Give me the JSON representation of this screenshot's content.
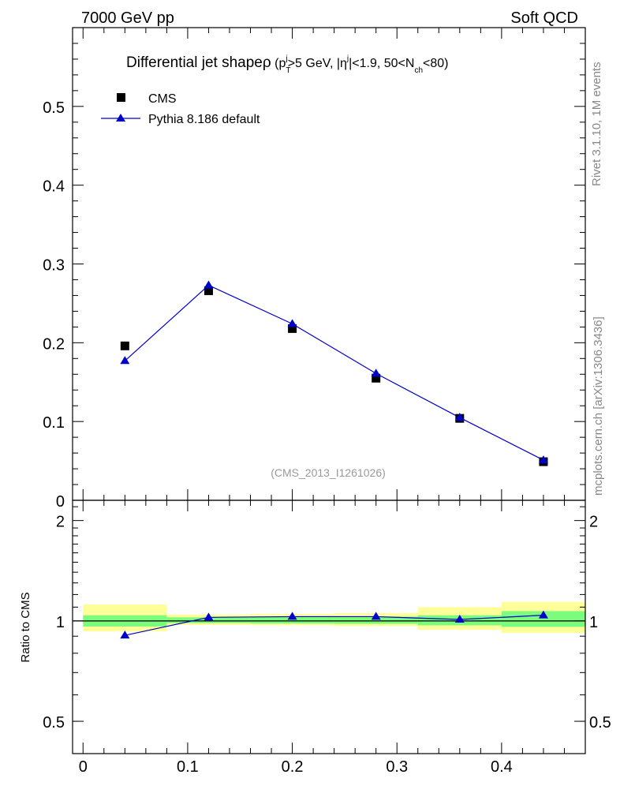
{
  "header": {
    "left": "7000 GeV pp",
    "right": "Soft QCD"
  },
  "side_labels": {
    "rivet": "Rivet 3.1.10,  1M events",
    "mcplots": "mcplots.cern.ch [arXiv:1306.3436]"
  },
  "title": {
    "main": "Differential jet shape",
    "rho": "ρ",
    "cut_open": " (p",
    "cut_pt_sub": "T",
    "cut_pt_sup": "j",
    "cut_mid": ">5 GeV, |η",
    "cut_eta_sup": "j",
    "cut_mid2": "|<1.9, 50<N",
    "cut_nch_sub": "ch",
    "cut_close": "<80)"
  },
  "watermark": "(CMS_2013_I1261026)",
  "ratio_ylabel": "Ratio to CMS",
  "colors": {
    "data": "#000000",
    "mc": "#0000cc",
    "band_inner": "#7cfc7c",
    "band_outer": "#ffff99"
  },
  "chart_data": [
    {
      "type": "scatter",
      "panel": "main",
      "xlim": [
        -0.01,
        0.48
      ],
      "ylim": [
        0,
        0.6
      ],
      "yticks": [
        {
          "value": 0,
          "label": "0"
        },
        {
          "value": 0.1,
          "label": "0.1"
        },
        {
          "value": 0.2,
          "label": "0.2"
        },
        {
          "value": 0.3,
          "label": "0.3"
        },
        {
          "value": 0.4,
          "label": "0.4"
        },
        {
          "value": 0.5,
          "label": "0.5"
        }
      ],
      "legend_position": "top-left",
      "series": [
        {
          "name": "CMS",
          "marker": "square",
          "x": [
            0.04,
            0.12,
            0.2,
            0.28,
            0.36,
            0.44
          ],
          "y": [
            0.196,
            0.266,
            0.218,
            0.155,
            0.104,
            0.049
          ]
        },
        {
          "name": "Pythia 8.186 default",
          "marker": "triangle",
          "x": [
            0.04,
            0.12,
            0.2,
            0.28,
            0.36,
            0.44
          ],
          "y": [
            0.177,
            0.273,
            0.224,
            0.161,
            0.105,
            0.051
          ]
        }
      ]
    },
    {
      "type": "line",
      "panel": "ratio",
      "xlim": [
        -0.01,
        0.48
      ],
      "ylim": [
        0.4,
        2.3
      ],
      "log_y": true,
      "xticks": [
        {
          "value": 0,
          "label": "0"
        },
        {
          "value": 0.1,
          "label": "0.1"
        },
        {
          "value": 0.2,
          "label": "0.2"
        },
        {
          "value": 0.3,
          "label": "0.3"
        },
        {
          "value": 0.4,
          "label": "0.4"
        }
      ],
      "yticks": [
        {
          "value": 0.5,
          "label": "0.5"
        },
        {
          "value": 1,
          "label": "1"
        },
        {
          "value": 2,
          "label": "2"
        }
      ],
      "bands": [
        {
          "x0": 0,
          "x1": 0.08,
          "inner": [
            0.962,
            1.04
          ],
          "outer": [
            0.93,
            1.12
          ]
        },
        {
          "x0": 0.08,
          "x1": 0.16,
          "inner": [
            0.985,
            1.025
          ],
          "outer": [
            0.972,
            1.045
          ]
        },
        {
          "x0": 0.16,
          "x1": 0.24,
          "inner": [
            0.982,
            1.028
          ],
          "outer": [
            0.97,
            1.05
          ]
        },
        {
          "x0": 0.24,
          "x1": 0.32,
          "inner": [
            0.98,
            1.03
          ],
          "outer": [
            0.965,
            1.055
          ]
        },
        {
          "x0": 0.32,
          "x1": 0.4,
          "inner": [
            0.97,
            1.04
          ],
          "outer": [
            0.94,
            1.1
          ]
        },
        {
          "x0": 0.4,
          "x1": 0.48,
          "inner": [
            0.96,
            1.07
          ],
          "outer": [
            0.92,
            1.14
          ]
        }
      ],
      "series": [
        {
          "marker": "triangle",
          "x": [
            0.04,
            0.12,
            0.2,
            0.28,
            0.36,
            0.44
          ],
          "y": [
            0.905,
            1.025,
            1.03,
            1.03,
            1.01,
            1.04
          ]
        }
      ]
    }
  ]
}
